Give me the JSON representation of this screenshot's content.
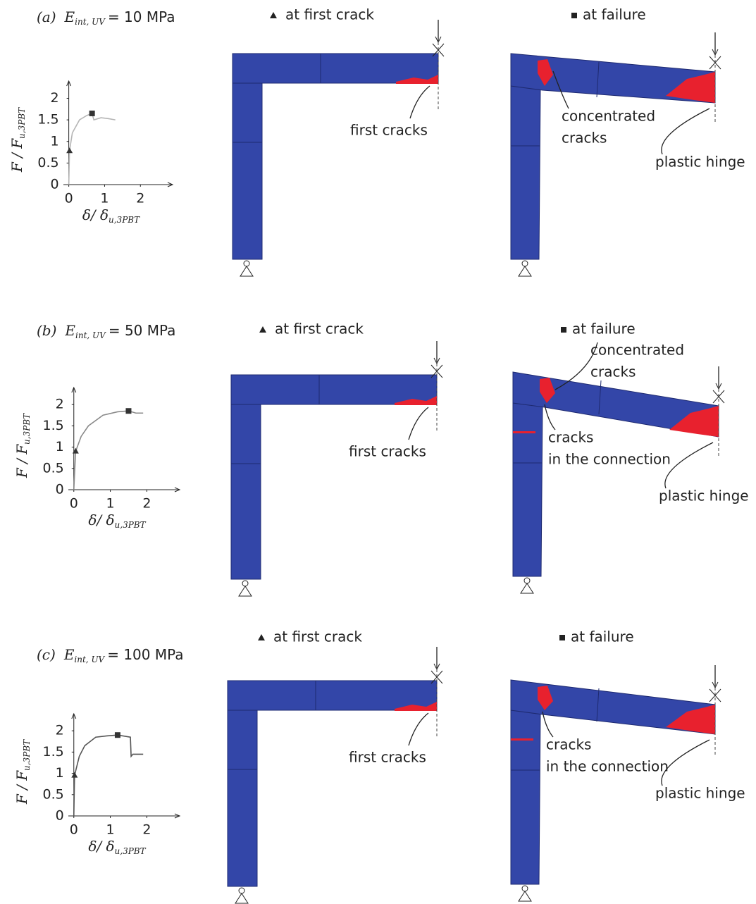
{
  "panels": [
    {
      "label": "(a)",
      "param": "E",
      "param_sub": "int, UV",
      "param_value": "= 10 MPa",
      "first_crack": {
        "title": "at first crack",
        "annotations": [
          [
            "first cracks"
          ]
        ]
      },
      "failure": {
        "title": "at failure",
        "annotations": [
          [
            "concentrated",
            "cracks"
          ],
          [
            "plastic hinge"
          ]
        ]
      }
    },
    {
      "label": "(b)",
      "param": "E",
      "param_sub": "int, UV",
      "param_value": "= 50 MPa",
      "first_crack": {
        "title": "at first crack",
        "annotations": [
          [
            "first cracks"
          ]
        ]
      },
      "failure": {
        "title": "at failure",
        "annotations": [
          [
            "concentrated",
            "cracks"
          ],
          [
            "cracks",
            "in the connection"
          ],
          [
            "plastic hinge"
          ]
        ]
      }
    },
    {
      "label": "(c)",
      "param": "E",
      "param_sub": "int, UV",
      "param_value": "= 100 MPa",
      "first_crack": {
        "title": "at first crack",
        "annotations": [
          [
            "first cracks"
          ]
        ]
      },
      "failure": {
        "title": "at failure",
        "annotations": [
          [
            "cracks",
            "in the connection"
          ],
          [
            "plastic hinge"
          ]
        ]
      }
    }
  ],
  "chart_data": [
    {
      "type": "line",
      "xlabel": {
        "main": "δ/ δ",
        "sub": "u,3PBT"
      },
      "ylabel": {
        "main": "F / F",
        "sub": "u,3PBT"
      },
      "xlim": [
        -0.15,
        2.9
      ],
      "ylim": [
        0,
        2.4
      ],
      "xticks": [
        0,
        1,
        2
      ],
      "yticks": [
        0,
        0.5,
        1,
        1.5,
        2
      ],
      "series": [
        {
          "color": "#b5b5b5",
          "x": [
            0,
            0.02,
            0.1,
            0.3,
            0.5,
            0.65,
            0.7,
            0.9,
            1.1,
            1.3
          ],
          "values": [
            0,
            0.78,
            1.2,
            1.5,
            1.6,
            1.65,
            1.5,
            1.55,
            1.53,
            1.5
          ]
        }
      ],
      "points": [
        {
          "shape": "triangle",
          "x": 0.02,
          "y": 0.78
        },
        {
          "shape": "square",
          "x": 0.65,
          "y": 1.65
        }
      ]
    },
    {
      "type": "line",
      "xlabel": {
        "main": "δ/ δ",
        "sub": "u,3PBT"
      },
      "ylabel": {
        "main": "F / F",
        "sub": "u,3PBT"
      },
      "xlim": [
        -0.15,
        2.9
      ],
      "ylim": [
        0,
        2.4
      ],
      "xticks": [
        0,
        1,
        2
      ],
      "yticks": [
        0,
        0.5,
        1,
        1.5,
        2
      ],
      "series": [
        {
          "color": "#8a8a8a",
          "x": [
            0,
            0.05,
            0.2,
            0.4,
            0.8,
            1.2,
            1.5,
            1.7,
            1.9
          ],
          "values": [
            0,
            0.9,
            1.25,
            1.5,
            1.75,
            1.83,
            1.85,
            1.8,
            1.8
          ]
        }
      ],
      "points": [
        {
          "shape": "triangle",
          "x": 0.05,
          "y": 0.9
        },
        {
          "shape": "square",
          "x": 1.5,
          "y": 1.85
        }
      ]
    },
    {
      "type": "line",
      "xlabel": {
        "main": "δ/ δ",
        "sub": "u,3PBT"
      },
      "ylabel": {
        "main": "F / F",
        "sub": "u,3PBT"
      },
      "xlim": [
        -0.15,
        2.9
      ],
      "ylim": [
        0,
        2.4
      ],
      "xticks": [
        0,
        1,
        2
      ],
      "yticks": [
        0,
        0.5,
        1,
        1.5,
        2
      ],
      "series": [
        {
          "color": "#555555",
          "x": [
            0,
            0.02,
            0.15,
            0.3,
            0.6,
            0.9,
            1.2,
            1.55,
            1.57,
            1.62,
            1.9
          ],
          "values": [
            0,
            0.95,
            1.4,
            1.65,
            1.85,
            1.88,
            1.9,
            1.85,
            1.4,
            1.45,
            1.45
          ]
        }
      ],
      "points": [
        {
          "shape": "triangle",
          "x": 0.02,
          "y": 0.95
        },
        {
          "shape": "square",
          "x": 1.2,
          "y": 1.9
        }
      ]
    }
  ]
}
